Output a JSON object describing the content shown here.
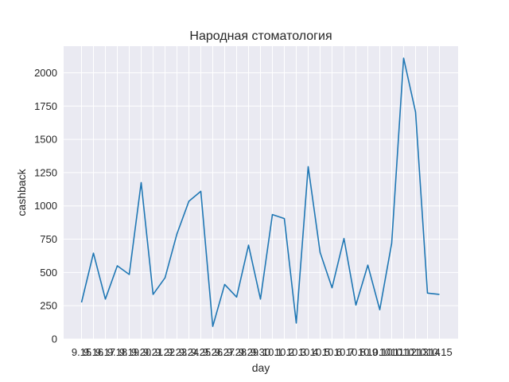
{
  "chart_data": {
    "type": "line",
    "title": "Народная стоматология",
    "xlabel": "day",
    "ylabel": "cashback",
    "ylim": [
      0,
      2200
    ],
    "yticks": [
      0,
      250,
      500,
      750,
      1000,
      1250,
      1500,
      1750,
      2000
    ],
    "grid": true,
    "legend": "none",
    "categories": [
      "9.15",
      "9.16",
      "9.17",
      "9.18",
      "9.19",
      "9.20",
      "9.21",
      "9.22",
      "9.23",
      "9.24",
      "9.25",
      "9.26",
      "9.27",
      "9.28",
      "9.29",
      "9.30",
      "10.1",
      "10.2",
      "10.3",
      "10.4",
      "10.5",
      "10.6",
      "10.7",
      "10.8",
      "10.9",
      "10.10",
      "10.11",
      "10.12",
      "10.13",
      "10.14",
      "10.15"
    ],
    "series": [
      {
        "values": [
          275,
          645,
          300,
          550,
          485,
          1175,
          335,
          460,
          790,
          1035,
          1110,
          95,
          410,
          315,
          705,
          300,
          935,
          905,
          120,
          1295,
          650,
          385,
          755,
          255,
          555,
          220,
          720,
          2110,
          1705,
          345,
          335
        ]
      }
    ],
    "colors": {
      "line": "#1f77b4",
      "plot_bg": "#eaeaf2",
      "grid": "#ffffff"
    }
  }
}
